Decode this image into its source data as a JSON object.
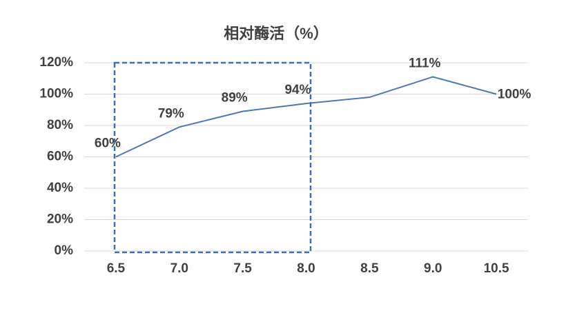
{
  "chart_data": {
    "type": "line",
    "title": "相对酶活（%）",
    "categories": [
      "6.5",
      "7.0",
      "7.5",
      "8.0",
      "8.5",
      "9.0",
      "10.5"
    ],
    "series": [
      {
        "name": "相对酶活",
        "color": "#4a78b5",
        "values": [
          60,
          79,
          89,
          94,
          98,
          111,
          100
        ],
        "value_labels": [
          "60%",
          "79%",
          "89%",
          "94%",
          null,
          "111%",
          "100%"
        ]
      }
    ],
    "ylim": [
      0,
      120
    ],
    "yticks": [
      {
        "value": 0,
        "label": "0%"
      },
      {
        "value": 20,
        "label": "20%"
      },
      {
        "value": 40,
        "label": "40%"
      },
      {
        "value": 60,
        "label": "60%"
      },
      {
        "value": 80,
        "label": "80%"
      },
      {
        "value": 100,
        "label": "100%"
      },
      {
        "value": 120,
        "label": "120%"
      }
    ],
    "grid": true
  }
}
